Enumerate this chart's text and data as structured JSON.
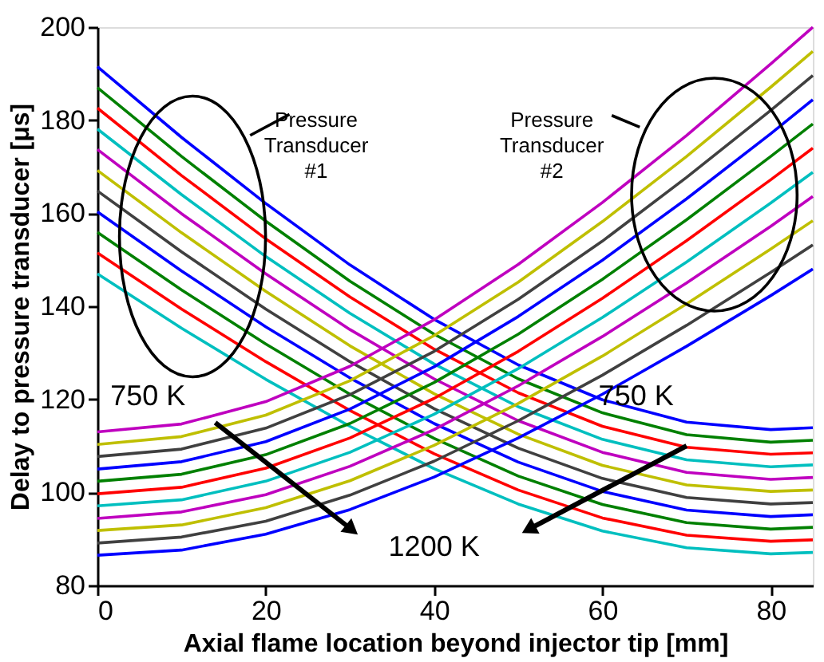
{
  "chart_data": {
    "type": "line",
    "xlabel": "Axial flame location beyond injector tip [mm]",
    "ylabel": "Delay to pressure transducer [μs]",
    "x": [
      0,
      10,
      20,
      30,
      40,
      50,
      60,
      70,
      80,
      85
    ],
    "xlim": [
      0,
      85
    ],
    "xticks": [
      0,
      20,
      40,
      60,
      80
    ],
    "ylim": [
      80,
      200
    ],
    "yticks": [
      80,
      100,
      120,
      140,
      160,
      180,
      200
    ],
    "grid": false,
    "legend": false,
    "marker": "none",
    "line_style": "solid",
    "series": [
      {
        "color": "#0000ff",
        "values": [
          191.5,
          176.3,
          162.1,
          148.9,
          137.2,
          127.4,
          119.9,
          115.1,
          113.5,
          113.9
        ]
      },
      {
        "color": "#008000",
        "values": [
          187.0,
          172.2,
          158.3,
          145.4,
          134.0,
          124.4,
          117.1,
          112.4,
          110.8,
          111.2
        ]
      },
      {
        "color": "#ff0000",
        "values": [
          182.6,
          168.1,
          154.5,
          142.0,
          130.8,
          121.4,
          114.2,
          109.7,
          108.2,
          108.5
        ]
      },
      {
        "color": "#00bfbf",
        "values": [
          178.1,
          164.0,
          150.7,
          138.5,
          127.6,
          118.4,
          111.4,
          107.0,
          105.5,
          105.9
        ]
      },
      {
        "color": "#bf00bf",
        "values": [
          173.7,
          159.9,
          147.0,
          135.0,
          124.4,
          115.4,
          108.6,
          104.3,
          102.8,
          103.2
        ]
      },
      {
        "color": "#bfbf00",
        "values": [
          169.2,
          155.8,
          143.2,
          131.5,
          121.2,
          112.5,
          105.8,
          101.6,
          100.2,
          100.5
        ]
      },
      {
        "color": "#404040",
        "values": [
          164.8,
          151.7,
          139.4,
          128.1,
          118.0,
          109.5,
          103.0,
          98.9,
          97.5,
          97.8
        ]
      },
      {
        "color": "#0000ff",
        "values": [
          160.3,
          147.6,
          135.6,
          124.6,
          114.8,
          106.5,
          100.2,
          96.2,
          94.8,
          95.2
        ]
      },
      {
        "color": "#008000",
        "values": [
          155.9,
          143.5,
          131.9,
          121.1,
          111.6,
          103.5,
          97.4,
          93.5,
          92.1,
          92.5
        ]
      },
      {
        "color": "#ff0000",
        "values": [
          151.5,
          139.4,
          128.1,
          117.6,
          108.3,
          100.5,
          94.5,
          90.8,
          89.5,
          89.8
        ]
      },
      {
        "color": "#00bfbf",
        "values": [
          147.0,
          135.3,
          124.3,
          114.2,
          105.1,
          97.5,
          91.7,
          88.1,
          86.8,
          87.1
        ]
      },
      {
        "color": "#bf00bf",
        "values": [
          113.0,
          114.7,
          119.5,
          127.1,
          137.1,
          149.0,
          162.3,
          176.7,
          192.1,
          200.0
        ]
      },
      {
        "color": "#bfbf00",
        "values": [
          110.3,
          112.0,
          116.6,
          124.0,
          133.7,
          145.2,
          158.2,
          172.2,
          187.1,
          194.8
        ]
      },
      {
        "color": "#404040",
        "values": [
          107.7,
          109.3,
          113.8,
          121.0,
          130.3,
          141.5,
          154.0,
          167.7,
          182.1,
          189.6
        ]
      },
      {
        "color": "#0000ff",
        "values": [
          105.0,
          106.6,
          110.9,
          117.9,
          127.0,
          137.8,
          149.9,
          163.1,
          177.1,
          184.4
        ]
      },
      {
        "color": "#008000",
        "values": [
          102.4,
          103.9,
          108.1,
          114.8,
          123.6,
          134.0,
          145.8,
          158.6,
          172.2,
          179.2
        ]
      },
      {
        "color": "#ff0000",
        "values": [
          99.7,
          101.1,
          105.2,
          111.7,
          120.2,
          130.3,
          141.7,
          154.1,
          167.2,
          174.0
        ]
      },
      {
        "color": "#00bfbf",
        "values": [
          97.1,
          98.4,
          102.4,
          108.6,
          116.8,
          126.6,
          137.6,
          149.5,
          162.2,
          168.8
        ]
      },
      {
        "color": "#bf00bf",
        "values": [
          94.4,
          95.8,
          99.5,
          105.6,
          113.5,
          122.9,
          133.5,
          145.0,
          157.2,
          163.6
        ]
      },
      {
        "color": "#bfbf00",
        "values": [
          91.8,
          93.0,
          96.7,
          102.5,
          110.1,
          119.1,
          129.3,
          140.5,
          152.3,
          158.4
        ]
      },
      {
        "color": "#404040",
        "values": [
          89.1,
          90.4,
          93.8,
          99.4,
          106.7,
          115.4,
          125.2,
          135.9,
          147.3,
          153.2
        ]
      },
      {
        "color": "#0000ff",
        "values": [
          86.5,
          87.6,
          91.0,
          96.3,
          103.3,
          111.7,
          121.1,
          131.4,
          142.3,
          148.0
        ]
      }
    ],
    "annotations": [
      "Pressure Transducer #1",
      "Pressure Transducer #2",
      "750 K",
      "750 K",
      "1200 K"
    ]
  }
}
